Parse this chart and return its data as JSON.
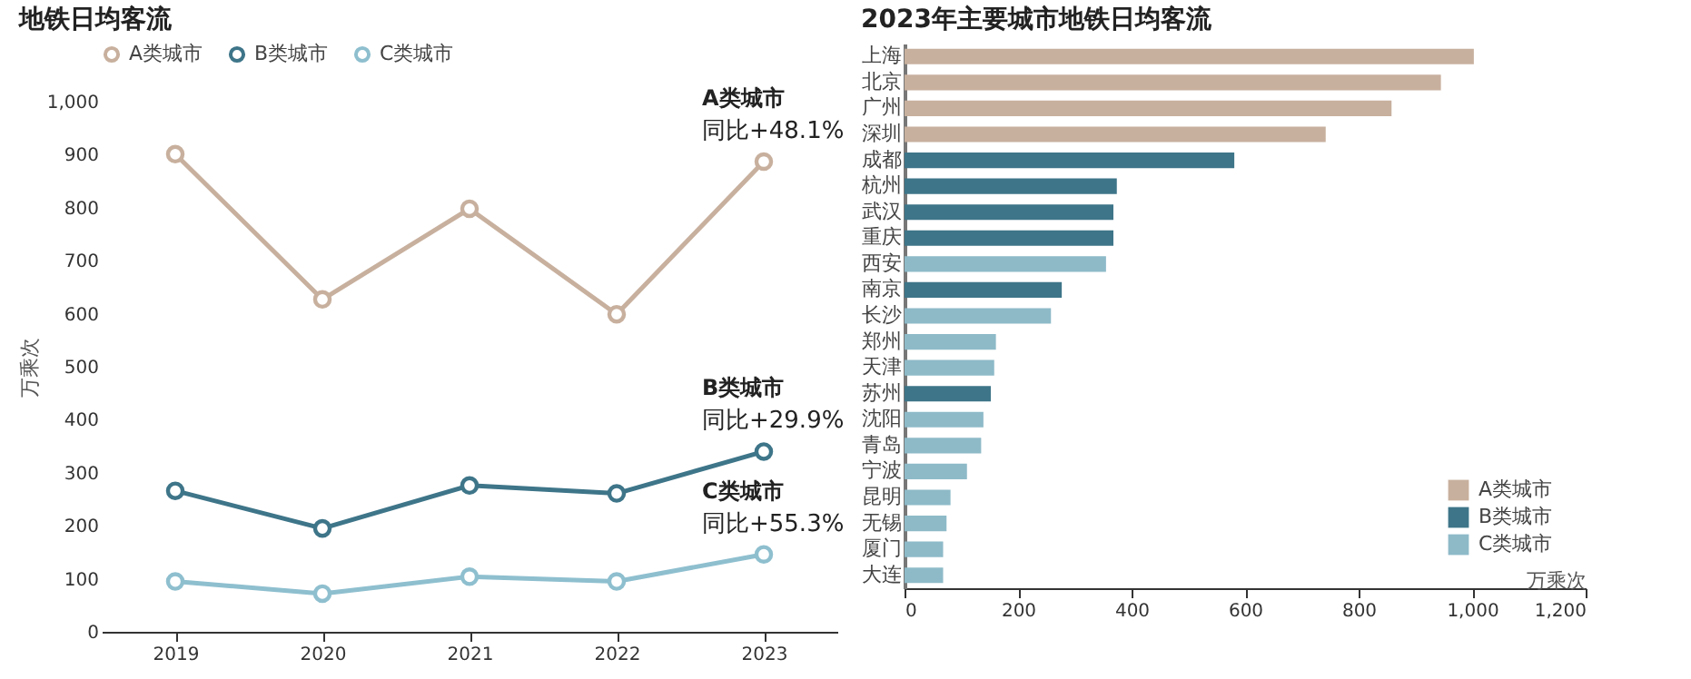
{
  "chart_data": [
    {
      "type": "line",
      "title": "地铁日均客流",
      "ylabel": "万乘次",
      "categories": [
        "2019",
        "2020",
        "2021",
        "2022",
        "2023"
      ],
      "series": [
        {
          "name": "A类城市",
          "color": "#c8b09e",
          "values": [
            901,
            627,
            798,
            599,
            887
          ]
        },
        {
          "name": "B类城市",
          "color": "#3e7589",
          "values": [
            266,
            195,
            276,
            261,
            340
          ]
        },
        {
          "name": "C类城市",
          "color": "#8ebfcf",
          "values": [
            95,
            72,
            104,
            95,
            146
          ]
        }
      ],
      "ylim": [
        0,
        1000
      ],
      "yticks": [
        0,
        100,
        200,
        300,
        400,
        500,
        600,
        700,
        800,
        900,
        {
          "value": 1000,
          "label": "1,000"
        }
      ],
      "legend": "top",
      "marker": "circle",
      "annotations": [
        {
          "text": "A类城市",
          "x": "2023",
          "y": 887
        },
        {
          "text": "同比+48.1%",
          "x": "2023",
          "y": 887
        },
        {
          "text": "B类城市",
          "x": "2023",
          "y": 340
        },
        {
          "text": "同比+29.9%",
          "x": "2023",
          "y": 340
        },
        {
          "text": "C类城市",
          "x": "2023",
          "y": 146
        },
        {
          "text": "同比+55.3%",
          "x": "2023",
          "y": 146
        }
      ]
    },
    {
      "type": "bar",
      "orientation": "horizontal",
      "title": "2023年主要城市地铁日均客流",
      "xlabel": "万乘次",
      "categories": [
        "上海",
        "北京",
        "广州",
        "深圳",
        "成都",
        "杭州",
        "武汉",
        "重庆",
        "西安",
        "南京",
        "长沙",
        "郑州",
        "天津",
        "苏州",
        "沈阳",
        "青岛",
        "宁波",
        "昆明",
        "无锡",
        "厦门",
        "大连"
      ],
      "series": [
        {
          "name": "A类城市",
          "color": "#c8b09e",
          "values": [
            1003,
            945,
            858,
            742,
            null,
            null,
            null,
            null,
            null,
            null,
            null,
            null,
            null,
            null,
            null,
            null,
            null,
            null,
            null,
            null,
            null
          ]
        },
        {
          "name": "B类城市",
          "color": "#3e7589",
          "values": [
            null,
            null,
            null,
            null,
            581,
            374,
            368,
            368,
            null,
            277,
            null,
            null,
            null,
            152,
            null,
            null,
            null,
            null,
            null,
            null,
            null
          ]
        },
        {
          "name": "C类城市",
          "color": "#8ebac8",
          "values": [
            null,
            null,
            null,
            null,
            null,
            null,
            null,
            null,
            355,
            null,
            258,
            161,
            158,
            null,
            139,
            135,
            110,
            81,
            74,
            68,
            68
          ]
        }
      ],
      "xlim": [
        0,
        1200
      ],
      "xticks": [
        0,
        200,
        400,
        600,
        800,
        {
          "value": 1000,
          "label": "1,000"
        },
        {
          "value": 1200,
          "label": "1,200"
        }
      ],
      "legend": "bottom right"
    }
  ]
}
